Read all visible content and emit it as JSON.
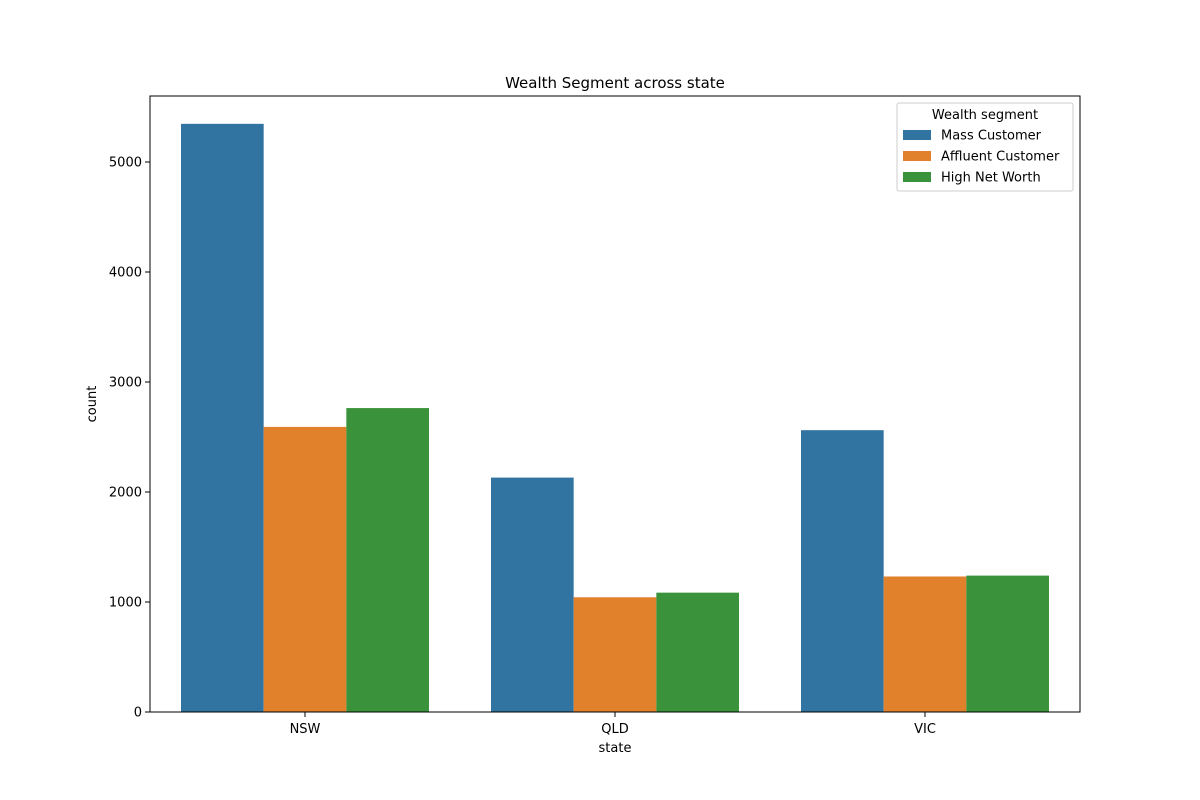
{
  "chart_data": {
    "type": "bar",
    "title": "Wealth Segment across state",
    "xlabel": "state",
    "ylabel": "count",
    "categories": [
      "NSW",
      "QLD",
      "VIC"
    ],
    "ylim": [
      0,
      5600
    ],
    "yticks": [
      0,
      1000,
      2000,
      3000,
      4000,
      5000
    ],
    "grid": false,
    "legend": {
      "title": "Wealth segment",
      "placement": "top-right"
    },
    "series": [
      {
        "name": "Mass Customer",
        "color": "#3274a1",
        "values": [
          5347,
          2131,
          2562
        ]
      },
      {
        "name": "Affluent Customer",
        "color": "#e1812c",
        "values": [
          2592,
          1043,
          1232
        ]
      },
      {
        "name": "High Net Worth",
        "color": "#3a923a",
        "values": [
          2763,
          1085,
          1240
        ]
      }
    ]
  }
}
